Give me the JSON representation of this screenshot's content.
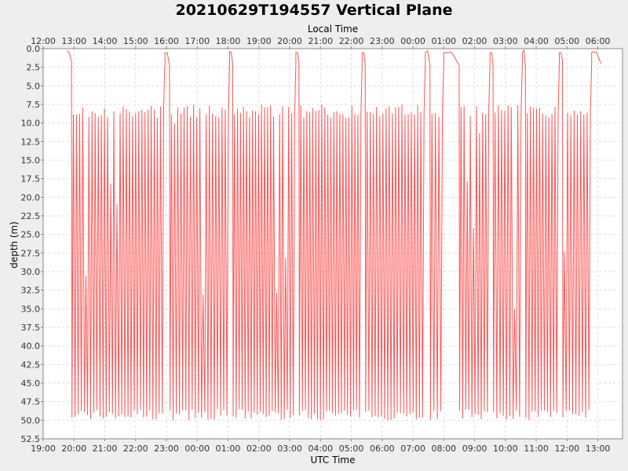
{
  "chart_data": {
    "type": "line",
    "title": "20210629T194557 Vertical Plane",
    "xlabel": "UTC Time",
    "x2label": "Local Time",
    "ylabel": "depth (m)",
    "y_inverted": true,
    "ylim": [
      0,
      52.5
    ],
    "yticks": [
      "0.0",
      "2.5",
      "5.0",
      "7.5",
      "10.0",
      "12.5",
      "15.0",
      "17.5",
      "20.0",
      "22.5",
      "25.0",
      "27.5",
      "30.0",
      "32.5",
      "35.0",
      "37.5",
      "40.0",
      "42.5",
      "45.0",
      "47.5",
      "50.0",
      "52.5"
    ],
    "x_hours_range": [
      19,
      37.8
    ],
    "utc_ticks": [
      "19:00",
      "20:00",
      "21:00",
      "22:00",
      "23:00",
      "00:00",
      "01:00",
      "02:00",
      "03:00",
      "04:00",
      "05:00",
      "06:00",
      "07:00",
      "08:00",
      "09:00",
      "10:00",
      "11:00",
      "12:00",
      "13:00"
    ],
    "local_ticks": [
      "12:00",
      "13:00",
      "14:00",
      "15:00",
      "16:00",
      "17:00",
      "18:00",
      "19:00",
      "20:00",
      "21:00",
      "22:00",
      "23:00",
      "00:00",
      "01:00",
      "02:00",
      "03:00",
      "04:00",
      "05:00",
      "06:00"
    ],
    "grid": true,
    "series_color": "#ff5555",
    "surface_intervals": [
      [
        19.77,
        19.92
      ],
      [
        22.95,
        23.1
      ],
      [
        25.05,
        25.15
      ],
      [
        27.2,
        27.3
      ],
      [
        29.35,
        29.45
      ],
      [
        31.4,
        31.55
      ],
      [
        32.0,
        32.5
      ],
      [
        33.5,
        33.6
      ],
      [
        34.55,
        34.65
      ],
      [
        35.75,
        35.85
      ],
      [
        36.8,
        37.1
      ]
    ],
    "dive_segments": [
      [
        19.92,
        22.95
      ],
      [
        23.1,
        25.05
      ],
      [
        25.15,
        27.2
      ],
      [
        27.3,
        29.35
      ],
      [
        29.45,
        31.4
      ],
      [
        31.55,
        32.0
      ],
      [
        32.5,
        33.5
      ],
      [
        33.6,
        34.55
      ],
      [
        34.65,
        35.75
      ],
      [
        35.85,
        36.8
      ]
    ],
    "dive_period_hours": 0.1,
    "dive_min_depth": 7.5,
    "dive_max_depth": 50
  }
}
